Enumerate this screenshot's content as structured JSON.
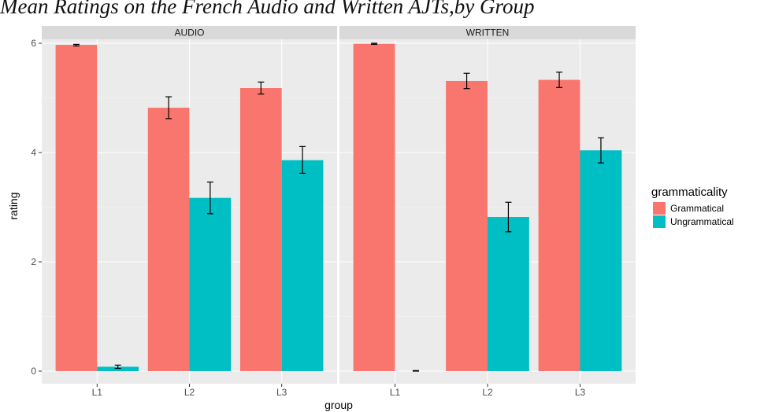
{
  "title": "Mean Ratings on the French Audio and Written AJTs,by Group",
  "chart_data": {
    "type": "bar",
    "title": "Mean Ratings on the French Audio and Written AJTs,by Group",
    "xlabel": "group",
    "ylabel": "rating",
    "ylim": [
      0,
      6.2
    ],
    "yticks": [
      0,
      2,
      4,
      6
    ],
    "grid": true,
    "legend": {
      "title": "grammaticality",
      "position": "right"
    },
    "categories": [
      "L1",
      "L2",
      "L3"
    ],
    "panels": [
      {
        "name": "AUDIO",
        "series": [
          {
            "name": "Grammatical",
            "color": "#F8766D",
            "values": [
              5.97,
              4.82,
              5.18
            ],
            "err_low": [
              5.95,
              4.62,
              5.07
            ],
            "err_high": [
              5.98,
              5.02,
              5.29
            ]
          },
          {
            "name": "Ungrammatical",
            "color": "#00BFC4",
            "values": [
              0.08,
              3.17,
              3.86
            ],
            "err_low": [
              0.05,
              2.88,
              3.62
            ],
            "err_high": [
              0.11,
              3.46,
              4.11
            ]
          }
        ]
      },
      {
        "name": "WRITTEN",
        "series": [
          {
            "name": "Grammatical",
            "color": "#F8766D",
            "values": [
              5.99,
              5.31,
              5.33
            ],
            "err_low": [
              5.98,
              5.17,
              5.19
            ],
            "err_high": [
              6.0,
              5.45,
              5.47
            ]
          },
          {
            "name": "Ungrammatical",
            "color": "#00BFC4",
            "values": [
              0.0,
              2.82,
              4.04
            ],
            "err_low": [
              0.0,
              2.55,
              3.81
            ],
            "err_high": [
              0.01,
              3.09,
              4.27
            ]
          }
        ]
      }
    ]
  }
}
